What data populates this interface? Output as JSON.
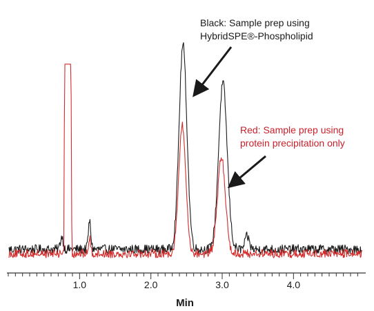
{
  "colors": {
    "black_series": "#1a1a1a",
    "red_series": "#d42a2a",
    "axis": "#333333",
    "arrow": "#1a1a1a",
    "black_text": "#1a1a1a",
    "red_text": "#c8202a"
  },
  "chart_data": {
    "type": "line",
    "xlabel": "Min",
    "xlim": [
      0.0,
      5.0
    ],
    "ylim": [
      0,
      100
    ],
    "grid": false,
    "x_ticks": [
      1.0,
      2.0,
      3.0,
      4.0
    ],
    "x_tick_labels": [
      "1.0",
      "2.0",
      "3.0",
      "4.0"
    ],
    "x_minor_tick_step": 0.1,
    "annotations": [
      {
        "id": "black",
        "lines": [
          "Black: Sample prep using",
          "HybridSPE®-Phospholipid"
        ],
        "color_key": "black_text",
        "points_to": [
          2.62,
          76
        ]
      },
      {
        "id": "red",
        "lines": [
          "Red: Sample prep using",
          "protein precipitation only"
        ],
        "color_key": "red_text",
        "points_to": [
          3.12,
          33
        ]
      }
    ],
    "series": [
      {
        "name": "Black: Sample prep using HybridSPE®-Phospholipid",
        "color_key": "black_series",
        "baseline": 3,
        "noise": 2.2,
        "peaks": [
          {
            "x": 2.45,
            "height": 96,
            "width": 0.055
          },
          {
            "x": 3.01,
            "height": 78,
            "width": 0.06
          },
          {
            "x": 1.14,
            "height": 13,
            "width": 0.018
          },
          {
            "x": 0.75,
            "height": 6,
            "width": 0.02
          },
          {
            "x": 3.35,
            "height": 6,
            "width": 0.03
          }
        ]
      },
      {
        "name": "Red: Sample prep using protein precipitation only",
        "color_key": "red_series",
        "baseline": 1,
        "noise": 2.0,
        "peaks": [
          {
            "x": 2.44,
            "height": 60,
            "width": 0.05
          },
          {
            "x": 2.99,
            "height": 45,
            "width": 0.055
          },
          {
            "x": 1.14,
            "height": 7,
            "width": 0.015
          },
          {
            "x": 0.8,
            "height": 5,
            "width": 0.02
          }
        ],
        "saturated_segments": [
          {
            "x_start": 0.79,
            "x_end": 0.88,
            "height": 90
          }
        ]
      }
    ]
  }
}
